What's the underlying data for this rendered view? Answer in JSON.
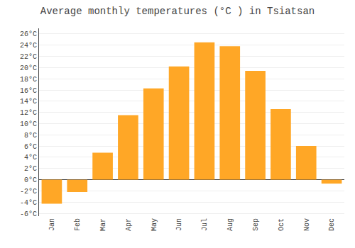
{
  "chart_data": {
    "type": "bar",
    "title": "Average monthly temperatures (°C ) in Tsiatsan",
    "categories": [
      "Jan",
      "Feb",
      "Mar",
      "Apr",
      "May",
      "Jun",
      "Jul",
      "Aug",
      "Sep",
      "Oct",
      "Nov",
      "Dec"
    ],
    "values": [
      -4.3,
      -2.2,
      4.8,
      11.5,
      16.3,
      20.2,
      24.5,
      23.8,
      19.4,
      12.6,
      6.0,
      -0.7
    ],
    "color": "#FFA726",
    "ylim": [
      -6.5,
      27
    ],
    "yticks": [
      {
        "value": -6,
        "label": "-6°C"
      },
      {
        "value": -4,
        "label": "-4°C"
      },
      {
        "value": -2,
        "label": "-2°C"
      },
      {
        "value": 0,
        "label": "0°C"
      },
      {
        "value": 2,
        "label": "2°C"
      },
      {
        "value": 4,
        "label": "4°C"
      },
      {
        "value": 6,
        "label": "6°C"
      },
      {
        "value": 8,
        "label": "8°C"
      },
      {
        "value": 10,
        "label": "10°C"
      },
      {
        "value": 12,
        "label": "12°C"
      },
      {
        "value": 14,
        "label": "14°C"
      },
      {
        "value": 16,
        "label": "16°C"
      },
      {
        "value": 18,
        "label": "18°C"
      },
      {
        "value": 20,
        "label": "20°C"
      },
      {
        "value": 22,
        "label": "22°C"
      },
      {
        "value": 24,
        "label": "24°C"
      },
      {
        "value": 26,
        "label": "26°C"
      }
    ],
    "grid": true
  }
}
